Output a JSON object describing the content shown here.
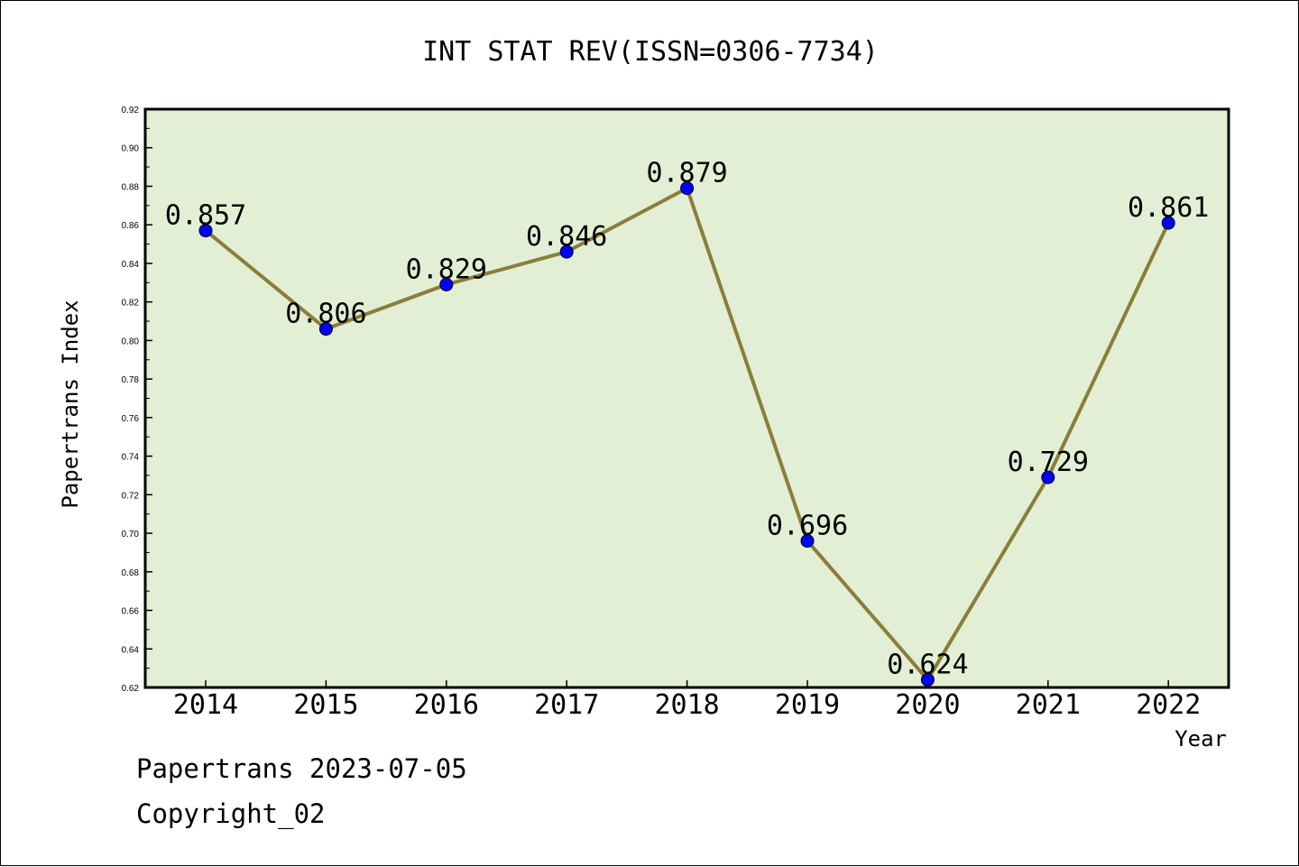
{
  "chart_data": {
    "type": "line",
    "title": "INT STAT REV(ISSN=0306-7734)",
    "xlabel": "Year",
    "ylabel": "Papertrans Index",
    "categories": [
      "2014",
      "2015",
      "2016",
      "2017",
      "2018",
      "2019",
      "2020",
      "2021",
      "2022"
    ],
    "series": [
      {
        "values": [
          0.857,
          0.806,
          0.829,
          0.846,
          0.879,
          0.696,
          0.624,
          0.729,
          0.861
        ]
      }
    ],
    "data_labels": [
      "0.857",
      "0.806",
      "0.829",
      "0.846",
      "0.879",
      "0.696",
      "0.624",
      "0.729",
      "0.861"
    ],
    "ylim": [
      0.62,
      0.92
    ],
    "yticks": [
      "0.62",
      "0.64",
      "0.66",
      "0.68",
      "0.70",
      "0.72",
      "0.74",
      "0.76",
      "0.78",
      "0.80",
      "0.82",
      "0.84",
      "0.86",
      "0.88",
      "0.90",
      "0.92"
    ],
    "grid": false,
    "colors": {
      "plot_background": "#e2efd5",
      "line": "#8b7d3a",
      "marker": "#0000ff"
    }
  },
  "footer": {
    "line1": "Papertrans 2023-07-05",
    "line2": "Copyright_02"
  }
}
